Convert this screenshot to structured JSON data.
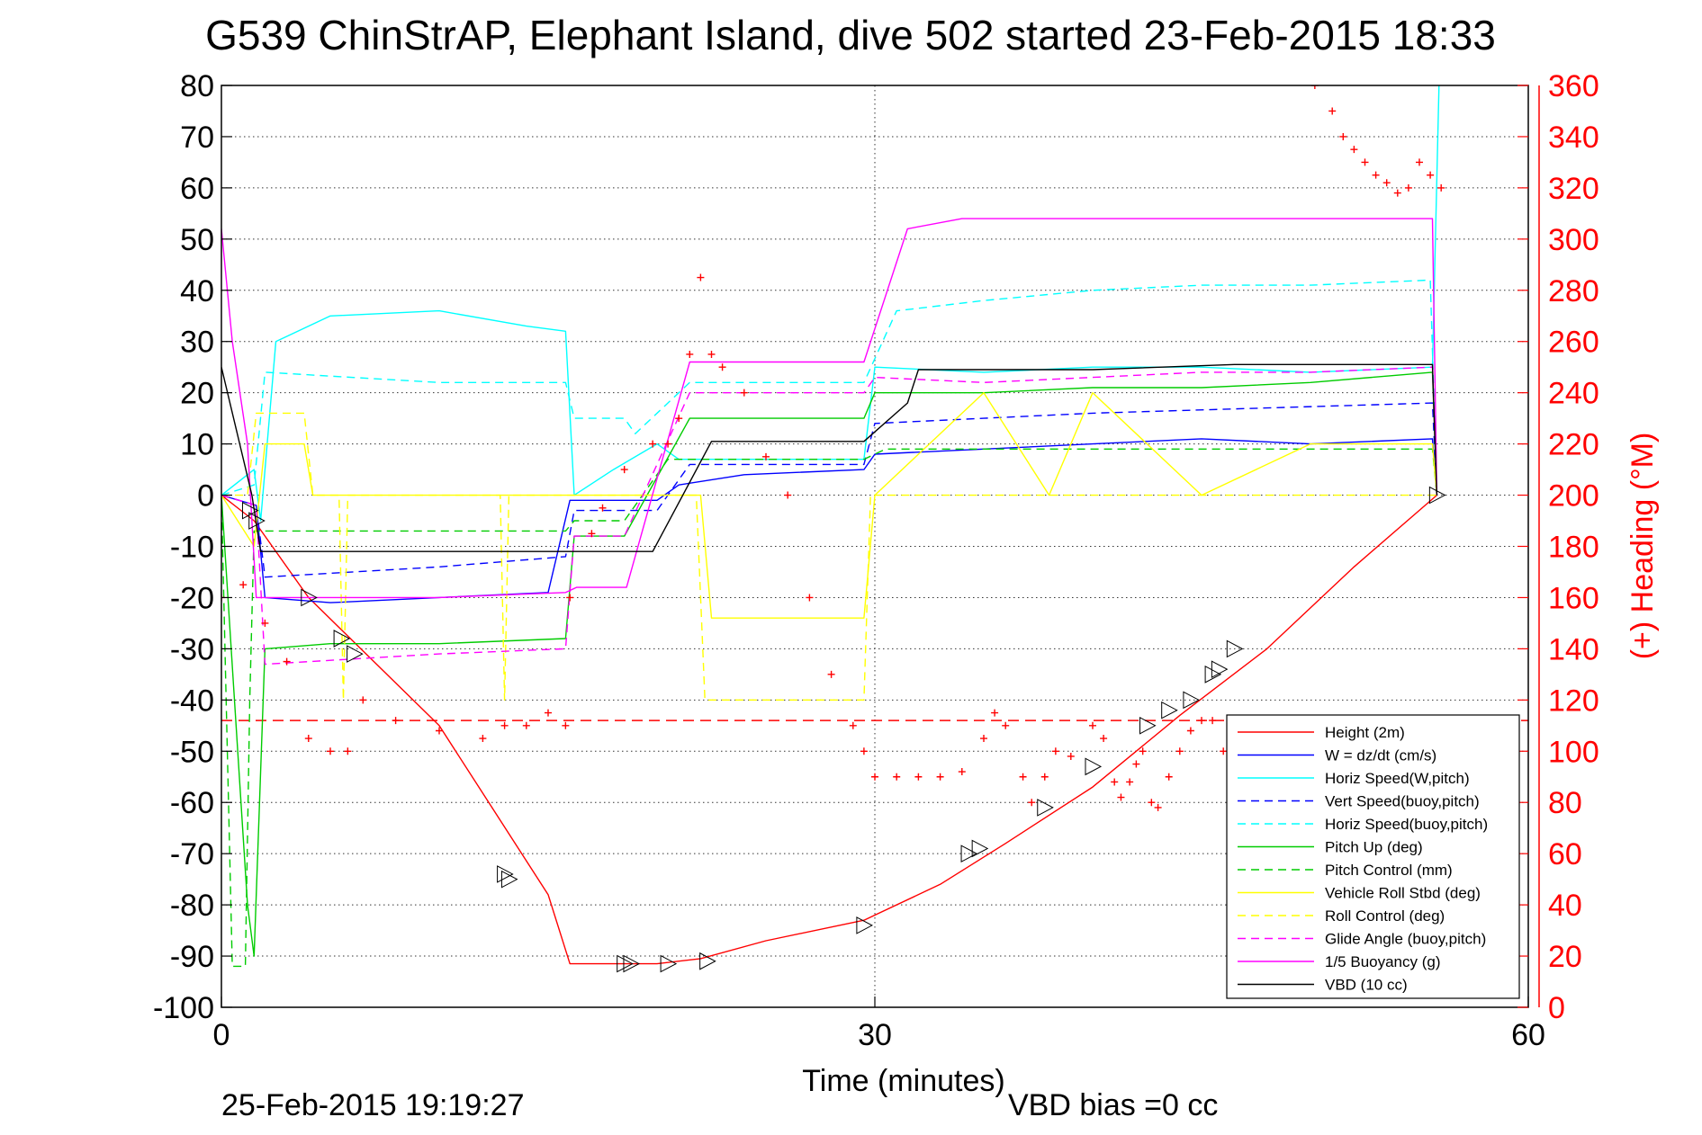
{
  "chart_data": {
    "type": "line",
    "title": "G539 ChinStrAP, Elephant Island, dive 502 started 23-Feb-2015 18:33",
    "xlabel": "Time (minutes)",
    "ylabel_right": "(+) Heading (°M)",
    "footer_left": "25-Feb-2015 19:19:27",
    "footer_right": "VBD bias =0 cc",
    "xlim": [
      0,
      60
    ],
    "ylim_left": [
      -100,
      80
    ],
    "ylim_right": [
      0,
      360
    ],
    "x_ticks": [
      "0",
      "30",
      "60"
    ],
    "y_left_ticks": [
      "80",
      "70",
      "60",
      "50",
      "40",
      "30",
      "20",
      "10",
      "0",
      "-10",
      "-20",
      "-30",
      "-40",
      "-50",
      "-60",
      "-70",
      "-80",
      "-90",
      "-100"
    ],
    "y_right_ticks": [
      "360",
      "340",
      "320",
      "300",
      "280",
      "260",
      "240",
      "220",
      "200",
      "180",
      "160",
      "140",
      "120",
      "100",
      "80",
      "60",
      "40",
      "20",
      "0"
    ],
    "grid": true,
    "legend_position": "bottom-right",
    "heading_reference": 112,
    "series": [
      {
        "name": "Height (2m)",
        "color": "#ff0000",
        "dash": "solid",
        "x": [
          0,
          1.5,
          4,
          10,
          15,
          16,
          20,
          22,
          25,
          29.5,
          33,
          36,
          40,
          44,
          48,
          52,
          55.8
        ],
        "y": [
          0,
          -5,
          -20,
          -45,
          -78,
          -91.5,
          -91.5,
          -90.5,
          -87,
          -83,
          -76,
          -68,
          -57,
          -43,
          -30,
          -14,
          0
        ]
      },
      {
        "name": "W = dz/dt (cm/s)",
        "color": "#0000ff",
        "dash": "solid",
        "x": [
          0,
          1.6,
          2,
          5,
          10,
          15,
          16,
          20,
          21,
          24,
          29.5,
          30,
          35,
          40,
          45,
          50,
          55.6,
          55.8
        ],
        "y": [
          0,
          -2,
          -20,
          -21,
          -20,
          -19,
          -1,
          -1,
          2,
          4,
          5,
          8,
          9,
          10,
          11,
          10,
          11,
          0
        ]
      },
      {
        "name": "Horiz Speed(W,pitch)",
        "color": "#00ffff",
        "dash": "solid",
        "x": [
          0,
          1.5,
          1.8,
          2.5,
          5,
          10,
          14,
          15.8,
          16.2,
          18,
          20,
          21,
          25,
          29.5,
          30,
          35,
          40,
          45,
          50,
          55.6,
          55.9
        ],
        "y": [
          0,
          5,
          -5,
          30,
          35,
          36,
          33,
          32,
          0,
          5,
          10,
          7,
          7,
          7,
          25,
          24,
          25,
          25,
          24,
          25,
          80
        ]
      },
      {
        "name": "Vert Speed(buoy,pitch)",
        "color": "#0000ff",
        "dash": "dashed",
        "x": [
          0,
          1.6,
          2,
          10,
          15.8,
          16.2,
          20,
          21.5,
          29.5,
          30,
          35,
          40,
          55.6,
          55.8
        ],
        "y": [
          0,
          -2,
          -16,
          -14,
          -12,
          -3,
          -3,
          6,
          6,
          14,
          15,
          16,
          18,
          0
        ]
      },
      {
        "name": "Horiz Speed(buoy,pitch)",
        "color": "#00ffff",
        "dash": "dashed",
        "x": [
          0,
          1.5,
          2,
          10,
          15.8,
          16.2,
          18.5,
          19,
          21.5,
          29.5,
          31,
          35,
          40,
          45,
          50,
          55.5,
          55.8
        ],
        "y": [
          0,
          2,
          24,
          22,
          22,
          15,
          15,
          12,
          22,
          22,
          36,
          38,
          40,
          41,
          41,
          42,
          0
        ]
      },
      {
        "name": "Pitch Up (deg)",
        "color": "#00cc00",
        "dash": "solid",
        "x": [
          0,
          1.2,
          1.5,
          2,
          5,
          10,
          15.8,
          16.2,
          18.5,
          21.5,
          29.5,
          30,
          35,
          40,
          45,
          50,
          55.6,
          55.8
        ],
        "y": [
          0,
          -80,
          -90,
          -30,
          -29,
          -29,
          -28,
          -8,
          -8,
          15,
          15,
          20,
          20,
          21,
          21,
          22,
          24,
          0
        ]
      },
      {
        "name": "Pitch Control (mm)",
        "color": "#00cc00",
        "dash": "dashed",
        "x": [
          0,
          0.5,
          1.1,
          1.3,
          1.5,
          15.8,
          16.2,
          18.5,
          20.5,
          29.5,
          30.5,
          55.6,
          55.8
        ],
        "y": [
          0,
          -92,
          -92,
          -40,
          -7,
          -7,
          -5,
          -5,
          7,
          7,
          9,
          9,
          0
        ]
      },
      {
        "name": "Vehicle Roll Stbd (deg)",
        "color": "#ffff00",
        "dash": "solid",
        "x": [
          0,
          1.5,
          2,
          3.8,
          4.2,
          15.8,
          16.2,
          19,
          20,
          22,
          22.5,
          29.5,
          30,
          35,
          38,
          40,
          45,
          50,
          55.6,
          55.8
        ],
        "y": [
          0,
          -10,
          10,
          10,
          0,
          0,
          0,
          0,
          0,
          0,
          -24,
          -24,
          0,
          20,
          0,
          20,
          0,
          10,
          10,
          0
        ]
      },
      {
        "name": "Roll Control (deg)",
        "color": "#ffff00",
        "dash": "dashed",
        "x": [
          0,
          1.2,
          1.6,
          3.8,
          4.2,
          5.4,
          5.6,
          5.8,
          12.8,
          13,
          13.2,
          21.8,
          22.2,
          29.5,
          29.8,
          55.6,
          55.8
        ],
        "y": [
          0,
          0,
          16,
          16,
          0,
          0,
          -40,
          0,
          0,
          -40,
          0,
          0,
          -40,
          -40,
          0,
          0,
          0
        ]
      },
      {
        "name": "Glide Angle (buoy,pitch)",
        "color": "#ff00ff",
        "dash": "dashed",
        "x": [
          0,
          1.6,
          2,
          10,
          15.8,
          16.2,
          18.5,
          21.5,
          29.5,
          30,
          35,
          40,
          45,
          50,
          55.6,
          55.8
        ],
        "y": [
          0,
          -2,
          -33,
          -31,
          -30,
          -8,
          -8,
          20,
          20,
          23,
          22,
          23,
          24,
          24,
          25,
          0
        ]
      },
      {
        "name": "1/5 Buoyancy (g)",
        "color": "#ff00ff",
        "dash": "solid",
        "x": [
          0,
          0.5,
          1.2,
          1.6,
          2,
          10,
          15.8,
          16.3,
          18.6,
          21.5,
          29.5,
          31.5,
          34,
          42,
          50,
          55.6,
          55.8
        ],
        "y": [
          52,
          30,
          10,
          -20,
          -20,
          -20,
          -19,
          -18,
          -18,
          26,
          26,
          52,
          54,
          54,
          54,
          54,
          0
        ]
      },
      {
        "name": "VBD (10 cc)",
        "color": "#000000",
        "dash": "solid",
        "x": [
          0,
          1.4,
          1.8,
          15.8,
          16.2,
          19.8,
          22.5,
          29.5,
          31.5,
          32,
          38,
          40,
          46.5,
          55.6,
          55.8
        ],
        "y": [
          25,
          0,
          -11,
          -11,
          -11,
          -11,
          10.5,
          10.5,
          18,
          24.5,
          24.5,
          24.5,
          25.5,
          25.5,
          0
        ]
      }
    ],
    "heading_series": {
      "name": "(+) Heading",
      "color": "#ff0000",
      "marker": "+",
      "x": [
        0,
        1,
        2,
        3,
        4,
        5,
        5.8,
        6.5,
        8,
        10,
        12,
        13,
        14,
        15,
        15.8,
        16,
        17,
        17.5,
        18.5,
        19.8,
        20.5,
        21,
        21.5,
        22,
        22.5,
        23,
        24,
        25,
        26,
        27,
        28,
        29,
        29.5,
        30,
        31,
        32,
        33,
        34,
        35,
        35.5,
        36,
        36.8,
        37.2,
        37.8,
        38.3,
        39,
        40,
        40.5,
        41,
        41.3,
        41.7,
        42,
        42.3,
        42.7,
        43,
        43.5,
        44,
        44.5,
        45,
        45.5,
        46,
        46.5,
        47,
        47.4,
        47.8,
        48.2,
        48.8,
        50.2,
        51,
        51.5,
        52,
        52.5,
        53,
        53.5,
        54,
        54.5,
        55,
        55.5,
        56
      ],
      "y": [
        160,
        165,
        150,
        135,
        105,
        100,
        100,
        120,
        112,
        108,
        105,
        110,
        110,
        115,
        110,
        160,
        185,
        195,
        210,
        220,
        220,
        230,
        255,
        285,
        255,
        250,
        240,
        215,
        200,
        160,
        130,
        110,
        100,
        90,
        90,
        90,
        90,
        92,
        105,
        115,
        110,
        90,
        80,
        90,
        100,
        98,
        110,
        105,
        88,
        82,
        88,
        95,
        100,
        80,
        78,
        90,
        100,
        108,
        112,
        112,
        100,
        90,
        80,
        112,
        110,
        95,
        85,
        360,
        350,
        340,
        335,
        330,
        325,
        322,
        318,
        320,
        330,
        325,
        320
      ]
    },
    "triangle_markers": {
      "x": [
        1.3,
        1.6,
        4,
        5.5,
        6.1,
        13,
        13.2,
        18.5,
        18.8,
        20.5,
        22.3,
        29.5,
        34.3,
        34.8,
        37.8,
        40,
        42.5,
        43.5,
        44.5,
        45.5,
        45.8,
        46.5,
        55.8
      ],
      "y": [
        -3,
        -5,
        -20,
        -28,
        -31,
        -74,
        -75,
        -91.5,
        -91.5,
        -91.5,
        -91,
        -84,
        -70,
        -69,
        -61,
        -53,
        -45,
        -42,
        -40,
        -35,
        -34,
        -30,
        0
      ]
    },
    "legend": {
      "entries": [
        "Height (2m)",
        "W = dz/dt (cm/s)",
        "Horiz Speed(W,pitch)",
        "Vert Speed(buoy,pitch)",
        "Horiz Speed(buoy,pitch)",
        "Pitch Up (deg)",
        "Pitch Control (mm)",
        "Vehicle Roll Stbd (deg)",
        "Roll Control (deg)",
        "Glide Angle (buoy,pitch)",
        "1/5 Buoyancy (g)",
        "VBD (10 cc)"
      ],
      "colors": [
        "#ff0000",
        "#0000ff",
        "#00ffff",
        "#0000ff",
        "#00ffff",
        "#00cc00",
        "#00cc00",
        "#ffff00",
        "#ffff00",
        "#ff00ff",
        "#ff00ff",
        "#000000"
      ],
      "dashes": [
        "solid",
        "solid",
        "solid",
        "dashed",
        "dashed",
        "solid",
        "dashed",
        "solid",
        "dashed",
        "dashed",
        "solid",
        "solid"
      ]
    }
  }
}
